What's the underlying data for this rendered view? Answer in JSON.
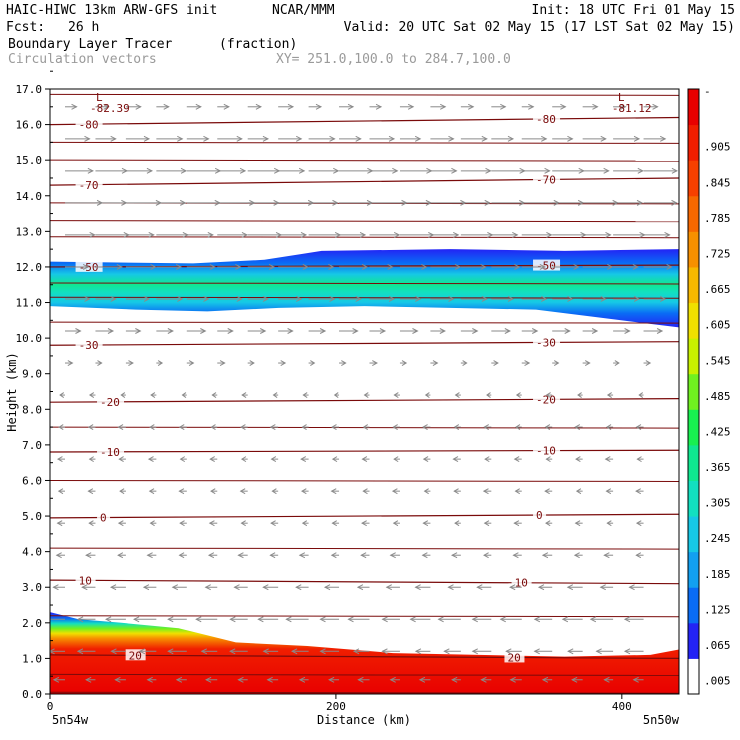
{
  "header": {
    "model": "HAIC-HIWC 13km ARW-GFS init",
    "org": "NCAR/MMM",
    "init": "Init: 18 UTC Fri 01 May 15",
    "fcst_label": "Fcst:",
    "fcst_value": "26 h",
    "valid": "Valid: 20 UTC Sat 02 May 15 (17 LST Sat 02 May 15)",
    "field_name": "Boundary Layer Tracer",
    "field_units": "(fraction)",
    "vector_label": "Circulation vectors",
    "xy_label": "XY= 251.0,100.0 to 284.7,100.0"
  },
  "colors": {
    "contour": "#7a0a0a",
    "vector": "#8a8a8a",
    "colorbar": [
      "#ffffff",
      "#2323f5",
      "#0a6cf5",
      "#12a0f0",
      "#16c8e6",
      "#12e0c0",
      "#10e890",
      "#18f050",
      "#70f020",
      "#c8f000",
      "#f0e000",
      "#f7b800",
      "#f79000",
      "#f76800",
      "#f74000",
      "#f01e00",
      "#e80000"
    ]
  },
  "chart_data": {
    "type": "heatmap",
    "title": "Boundary Layer Tracer (fraction)",
    "xlabel": "Distance (km)",
    "ylabel": "Height (km)",
    "xlim": [
      0,
      440
    ],
    "ylim": [
      0,
      17
    ],
    "x_ticks": [
      "0",
      "200",
      "400"
    ],
    "x_tick_values": [
      0,
      200,
      400
    ],
    "x_end_labels": [
      "5n54w",
      "5n50w"
    ],
    "y_ticks": [
      "0.0",
      "1.0",
      "2.0",
      "3.0",
      "4.0",
      "5.0",
      "6.0",
      "7.0",
      "8.0",
      "9.0",
      "10.0",
      "11.0",
      "12.0",
      "13.0",
      "14.0",
      "15.0",
      "16.0",
      "17.0"
    ],
    "colorbar_labels": [
      "-",
      ".905",
      ".845",
      ".785",
      ".725",
      ".665",
      ".605",
      ".545",
      ".485",
      ".425",
      ".365",
      ".305",
      ".245",
      ".185",
      ".125",
      ".065",
      ".005"
    ],
    "low_labels": [
      {
        "text": "L",
        "value": "-82.39",
        "x": 35,
        "y": 16.6
      },
      {
        "text": "L",
        "value": "-81.12",
        "x": 400,
        "y": 16.6
      }
    ],
    "tracer_layers": [
      {
        "name": "boundary-layer",
        "bottom": [
          [
            0,
            0
          ],
          [
            440,
            0
          ]
        ],
        "top": [
          [
            0,
            2.3
          ],
          [
            20,
            2.1
          ],
          [
            50,
            2.0
          ],
          [
            90,
            1.85
          ],
          [
            130,
            1.45
          ],
          [
            180,
            1.35
          ],
          [
            240,
            1.15
          ],
          [
            300,
            1.1
          ],
          [
            360,
            1.05
          ],
          [
            420,
            1.1
          ],
          [
            440,
            1.25
          ]
        ]
      },
      {
        "name": "upper-layer",
        "bottom": [
          [
            0,
            10.9
          ],
          [
            60,
            10.8
          ],
          [
            110,
            10.75
          ],
          [
            160,
            10.85
          ],
          [
            220,
            10.9
          ],
          [
            280,
            10.85
          ],
          [
            340,
            10.8
          ],
          [
            380,
            10.6
          ],
          [
            440,
            10.3
          ]
        ],
        "top": [
          [
            0,
            12.15
          ],
          [
            100,
            12.1
          ],
          [
            150,
            12.2
          ],
          [
            190,
            12.45
          ],
          [
            280,
            12.5
          ],
          [
            360,
            12.45
          ],
          [
            440,
            12.5
          ]
        ]
      }
    ],
    "contours": [
      {
        "value": "-80",
        "y_left": 16.0,
        "y_right": 16.2,
        "label_x": [
          20,
          340
        ]
      },
      {
        "value": "-70",
        "y_left": 14.3,
        "y_right": 14.5,
        "label_x": [
          20,
          340
        ]
      },
      {
        "value": "-50",
        "y_left": 12.0,
        "y_right": 12.05,
        "label_x": [
          20,
          340
        ]
      },
      {
        "value": "-30",
        "y_left": 9.8,
        "y_right": 9.9,
        "label_x": [
          20,
          340
        ]
      },
      {
        "value": "-20",
        "y_left": 8.2,
        "y_right": 8.3,
        "label_x": [
          35,
          340
        ]
      },
      {
        "value": "-10",
        "y_left": 6.8,
        "y_right": 6.85,
        "label_x": [
          35,
          340
        ]
      },
      {
        "value": "0",
        "y_left": 4.95,
        "y_right": 5.05,
        "label_x": [
          35,
          340
        ]
      },
      {
        "value": "10",
        "y_left": 3.2,
        "y_right": 3.1,
        "label_x": [
          20,
          325
        ]
      },
      {
        "value": "20",
        "y_left": 1.1,
        "y_right": 1.0,
        "label_x": [
          55,
          320
        ]
      }
    ],
    "extra_contour_levels": [
      16.85,
      15.5,
      15.0,
      13.8,
      13.3,
      12.85,
      11.55,
      11.15,
      10.45,
      7.5,
      6.0,
      4.1,
      2.2,
      0.55,
      0.05
    ],
    "vectors": {
      "description": "Circulation vectors: strong westerly flow aloft (11-16 km), weak easterly flow at mid levels (3-9 km), easterly flow near surface",
      "rows_km": [
        16.5,
        15.6,
        14.7,
        13.8,
        12.9,
        12.0,
        11.1,
        10.2,
        9.3,
        8.4,
        7.5,
        6.6,
        5.7,
        4.8,
        3.9,
        3.0,
        2.1,
        1.2,
        0.4
      ],
      "u": [
        4,
        7,
        9,
        10,
        9,
        8,
        7,
        5,
        2,
        -1.5,
        -2,
        -2,
        -2,
        -2,
        -2.5,
        -4,
        -6,
        -5,
        -3
      ]
    }
  }
}
